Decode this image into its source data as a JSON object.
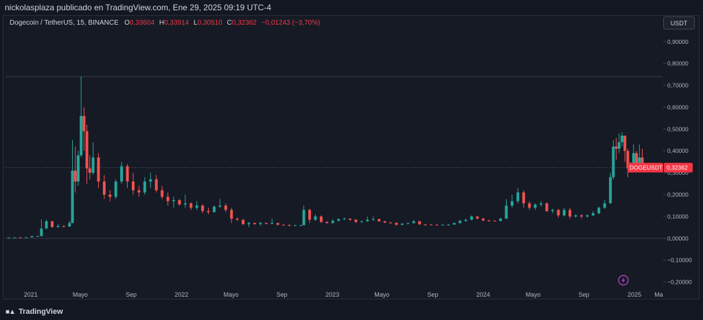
{
  "header": {
    "publisher_text": "nickolasplaza publicado en TradingView.com, Ene 29, 2025 09:19 UTC-4"
  },
  "symbol": {
    "title": "Dogecoin / TetherUS, 15, BINANCE",
    "open_label": "O",
    "open_value": "0,33604",
    "high_label": "H",
    "high_value": "0,33914",
    "low_label": "L",
    "low_value": "0,30510",
    "close_label": "C",
    "close_value": "0,32362",
    "change": "−0,01243 (−3,70%)"
  },
  "currency_button": "USDT",
  "price_tag": {
    "symbol": "DOGEUSDT",
    "price": "0,32362"
  },
  "footer": {
    "brand": "TradingView"
  },
  "colors": {
    "up": "#26a69a",
    "down": "#ef5350",
    "background": "#161a25",
    "grid_text": "#b2b5be",
    "tag": "#f23645"
  },
  "icons": [
    "lightning-icon",
    "tradingview-logo-icon"
  ],
  "chart_data": {
    "type": "candlestick",
    "title": "Dogecoin / TetherUS, 15, BINANCE",
    "ylim": [
      -0.22,
      0.94
    ],
    "y_ticks": [
      {
        "value": 0.9,
        "label": "0,90000"
      },
      {
        "value": 0.8,
        "label": "0,80000"
      },
      {
        "value": 0.7,
        "label": "0,70000"
      },
      {
        "value": 0.6,
        "label": "0,60000"
      },
      {
        "value": 0.5,
        "label": "0,50000"
      },
      {
        "value": 0.4,
        "label": "0,40000"
      },
      {
        "value": 0.3,
        "label": "0,30000"
      },
      {
        "value": 0.2,
        "label": "0,20000"
      },
      {
        "value": 0.1,
        "label": "0,10000"
      },
      {
        "value": 0.0,
        "label": "0,00000"
      },
      {
        "value": -0.1,
        "label": "−0,10000"
      },
      {
        "value": -0.2,
        "label": "−0,20000"
      }
    ],
    "x_ticks": [
      {
        "date": "2021-01-01",
        "label": "2021"
      },
      {
        "date": "2021-05-01",
        "label": "Mayo"
      },
      {
        "date": "2021-09-01",
        "label": "Sep"
      },
      {
        "date": "2022-01-01",
        "label": "2022"
      },
      {
        "date": "2022-05-01",
        "label": "Mayo"
      },
      {
        "date": "2022-09-01",
        "label": "Sep"
      },
      {
        "date": "2023-01-01",
        "label": "2023"
      },
      {
        "date": "2023-05-01",
        "label": "Mayo"
      },
      {
        "date": "2023-09-01",
        "label": "Sep"
      },
      {
        "date": "2024-01-01",
        "label": "2024"
      },
      {
        "date": "2024-05-01",
        "label": "Mayo"
      },
      {
        "date": "2024-09-01",
        "label": "Sep"
      },
      {
        "date": "2025-01-01",
        "label": "2025"
      },
      {
        "date": "2025-03-01",
        "label": "Ma"
      }
    ],
    "horizontal_lines": [
      0.74,
      0.32362,
      0.0
    ],
    "last_price": 0.32362,
    "candles": [
      [
        "2020-11-09",
        0.0028,
        0.0036,
        0.0025,
        0.0034
      ],
      [
        "2020-11-23",
        0.0034,
        0.0045,
        0.003,
        0.0042
      ],
      [
        "2020-12-07",
        0.0042,
        0.0047,
        0.0036,
        0.004
      ],
      [
        "2020-12-21",
        0.004,
        0.0052,
        0.0038,
        0.0046
      ],
      [
        "2021-01-04",
        0.0046,
        0.012,
        0.0042,
        0.0098
      ],
      [
        "2021-01-18",
        0.0098,
        0.012,
        0.008,
        0.0105
      ],
      [
        "2021-01-27",
        0.0105,
        0.087,
        0.009,
        0.045
      ],
      [
        "2021-02-08",
        0.045,
        0.086,
        0.042,
        0.078
      ],
      [
        "2021-02-22",
        0.078,
        0.08,
        0.048,
        0.052
      ],
      [
        "2021-03-08",
        0.052,
        0.064,
        0.048,
        0.056
      ],
      [
        "2021-03-22",
        0.056,
        0.06,
        0.05,
        0.054
      ],
      [
        "2021-04-05",
        0.054,
        0.08,
        0.052,
        0.07
      ],
      [
        "2021-04-12",
        0.07,
        0.45,
        0.07,
        0.31
      ],
      [
        "2021-04-19",
        0.31,
        0.42,
        0.21,
        0.26
      ],
      [
        "2021-04-26",
        0.26,
        0.4,
        0.24,
        0.38
      ],
      [
        "2021-05-03",
        0.38,
        0.74,
        0.37,
        0.56
      ],
      [
        "2021-05-10",
        0.56,
        0.6,
        0.4,
        0.49
      ],
      [
        "2021-05-17",
        0.49,
        0.52,
        0.25,
        0.32
      ],
      [
        "2021-05-24",
        0.32,
        0.38,
        0.27,
        0.3
      ],
      [
        "2021-06-01",
        0.3,
        0.44,
        0.29,
        0.37
      ],
      [
        "2021-06-14",
        0.37,
        0.39,
        0.23,
        0.26
      ],
      [
        "2021-06-28",
        0.26,
        0.29,
        0.18,
        0.2
      ],
      [
        "2021-07-12",
        0.2,
        0.22,
        0.17,
        0.19
      ],
      [
        "2021-07-26",
        0.19,
        0.27,
        0.18,
        0.26
      ],
      [
        "2021-08-09",
        0.26,
        0.35,
        0.25,
        0.33
      ],
      [
        "2021-08-23",
        0.33,
        0.34,
        0.23,
        0.26
      ],
      [
        "2021-09-06",
        0.26,
        0.3,
        0.2,
        0.22
      ],
      [
        "2021-09-20",
        0.22,
        0.24,
        0.19,
        0.21
      ],
      [
        "2021-10-04",
        0.21,
        0.28,
        0.2,
        0.26
      ],
      [
        "2021-10-18",
        0.26,
        0.3,
        0.23,
        0.27
      ],
      [
        "2021-11-01",
        0.27,
        0.29,
        0.21,
        0.22
      ],
      [
        "2021-11-15",
        0.22,
        0.24,
        0.18,
        0.19
      ],
      [
        "2021-11-29",
        0.19,
        0.21,
        0.15,
        0.17
      ],
      [
        "2021-12-13",
        0.17,
        0.19,
        0.14,
        0.175
      ],
      [
        "2021-12-27",
        0.175,
        0.18,
        0.15,
        0.155
      ],
      [
        "2022-01-10",
        0.155,
        0.2,
        0.14,
        0.16
      ],
      [
        "2022-01-24",
        0.16,
        0.165,
        0.13,
        0.14
      ],
      [
        "2022-02-07",
        0.14,
        0.17,
        0.13,
        0.15
      ],
      [
        "2022-02-21",
        0.15,
        0.155,
        0.115,
        0.125
      ],
      [
        "2022-03-07",
        0.125,
        0.14,
        0.11,
        0.12
      ],
      [
        "2022-03-21",
        0.12,
        0.15,
        0.118,
        0.145
      ],
      [
        "2022-04-04",
        0.145,
        0.18,
        0.14,
        0.15
      ],
      [
        "2022-04-18",
        0.15,
        0.16,
        0.12,
        0.13
      ],
      [
        "2022-05-02",
        0.13,
        0.14,
        0.07,
        0.09
      ],
      [
        "2022-05-16",
        0.09,
        0.095,
        0.08,
        0.085
      ],
      [
        "2022-05-30",
        0.085,
        0.088,
        0.06,
        0.065
      ],
      [
        "2022-06-13",
        0.065,
        0.075,
        0.052,
        0.07
      ],
      [
        "2022-06-27",
        0.07,
        0.072,
        0.062,
        0.065
      ],
      [
        "2022-07-11",
        0.065,
        0.075,
        0.058,
        0.07
      ],
      [
        "2022-07-25",
        0.07,
        0.072,
        0.064,
        0.066
      ],
      [
        "2022-08-08",
        0.066,
        0.09,
        0.065,
        0.07
      ],
      [
        "2022-08-22",
        0.07,
        0.072,
        0.059,
        0.062
      ],
      [
        "2022-09-05",
        0.062,
        0.064,
        0.058,
        0.06
      ],
      [
        "2022-09-19",
        0.06,
        0.065,
        0.056,
        0.059
      ],
      [
        "2022-10-03",
        0.059,
        0.062,
        0.057,
        0.06
      ],
      [
        "2022-10-17",
        0.06,
        0.062,
        0.058,
        0.06
      ],
      [
        "2022-10-24",
        0.06,
        0.15,
        0.06,
        0.13
      ],
      [
        "2022-11-07",
        0.13,
        0.135,
        0.07,
        0.085
      ],
      [
        "2022-11-21",
        0.085,
        0.11,
        0.08,
        0.1
      ],
      [
        "2022-12-05",
        0.1,
        0.105,
        0.07,
        0.075
      ],
      [
        "2022-12-19",
        0.075,
        0.078,
        0.068,
        0.07
      ],
      [
        "2023-01-02",
        0.07,
        0.088,
        0.068,
        0.08
      ],
      [
        "2023-01-16",
        0.08,
        0.092,
        0.078,
        0.088
      ],
      [
        "2023-01-30",
        0.088,
        0.095,
        0.084,
        0.09
      ],
      [
        "2023-02-13",
        0.09,
        0.092,
        0.08,
        0.085
      ],
      [
        "2023-02-27",
        0.085,
        0.088,
        0.07,
        0.075
      ],
      [
        "2023-03-13",
        0.075,
        0.08,
        0.07,
        0.078
      ],
      [
        "2023-03-27",
        0.078,
        0.1,
        0.076,
        0.085
      ],
      [
        "2023-04-10",
        0.085,
        0.1,
        0.08,
        0.088
      ],
      [
        "2023-04-24",
        0.088,
        0.09,
        0.076,
        0.078
      ],
      [
        "2023-05-08",
        0.078,
        0.08,
        0.07,
        0.072
      ],
      [
        "2023-05-22",
        0.072,
        0.075,
        0.068,
        0.071
      ],
      [
        "2023-06-05",
        0.071,
        0.073,
        0.058,
        0.062
      ],
      [
        "2023-06-19",
        0.062,
        0.07,
        0.06,
        0.067
      ],
      [
        "2023-07-03",
        0.067,
        0.072,
        0.064,
        0.07
      ],
      [
        "2023-07-17",
        0.07,
        0.085,
        0.068,
        0.078
      ],
      [
        "2023-07-31",
        0.078,
        0.08,
        0.062,
        0.064
      ],
      [
        "2023-08-14",
        0.064,
        0.066,
        0.058,
        0.063
      ],
      [
        "2023-08-28",
        0.063,
        0.065,
        0.06,
        0.062
      ],
      [
        "2023-09-11",
        0.062,
        0.064,
        0.06,
        0.0615
      ],
      [
        "2023-09-25",
        0.0615,
        0.064,
        0.06,
        0.062
      ],
      [
        "2023-10-09",
        0.062,
        0.065,
        0.058,
        0.063
      ],
      [
        "2023-10-23",
        0.063,
        0.072,
        0.062,
        0.07
      ],
      [
        "2023-11-06",
        0.07,
        0.085,
        0.068,
        0.08
      ],
      [
        "2023-11-20",
        0.08,
        0.09,
        0.075,
        0.085
      ],
      [
        "2023-12-04",
        0.085,
        0.105,
        0.083,
        0.1
      ],
      [
        "2023-12-18",
        0.1,
        0.102,
        0.088,
        0.09
      ],
      [
        "2024-01-01",
        0.09,
        0.095,
        0.078,
        0.082
      ],
      [
        "2024-01-15",
        0.082,
        0.085,
        0.076,
        0.08
      ],
      [
        "2024-01-29",
        0.08,
        0.083,
        0.077,
        0.079
      ],
      [
        "2024-02-12",
        0.079,
        0.095,
        0.078,
        0.09
      ],
      [
        "2024-02-26",
        0.09,
        0.18,
        0.088,
        0.15
      ],
      [
        "2024-03-11",
        0.15,
        0.2,
        0.14,
        0.17
      ],
      [
        "2024-03-25",
        0.17,
        0.23,
        0.16,
        0.21
      ],
      [
        "2024-04-08",
        0.21,
        0.22,
        0.14,
        0.16
      ],
      [
        "2024-04-22",
        0.16,
        0.17,
        0.13,
        0.14
      ],
      [
        "2024-05-06",
        0.14,
        0.16,
        0.13,
        0.155
      ],
      [
        "2024-05-20",
        0.155,
        0.17,
        0.145,
        0.16
      ],
      [
        "2024-06-03",
        0.16,
        0.165,
        0.12,
        0.125
      ],
      [
        "2024-06-17",
        0.125,
        0.135,
        0.115,
        0.13
      ],
      [
        "2024-07-01",
        0.13,
        0.135,
        0.095,
        0.105
      ],
      [
        "2024-07-15",
        0.105,
        0.14,
        0.1,
        0.13
      ],
      [
        "2024-07-29",
        0.13,
        0.14,
        0.09,
        0.1
      ],
      [
        "2024-08-12",
        0.1,
        0.11,
        0.095,
        0.105
      ],
      [
        "2024-08-26",
        0.105,
        0.11,
        0.092,
        0.1
      ],
      [
        "2024-09-09",
        0.1,
        0.11,
        0.095,
        0.105
      ],
      [
        "2024-09-23",
        0.105,
        0.125,
        0.102,
        0.115
      ],
      [
        "2024-10-07",
        0.115,
        0.145,
        0.11,
        0.14
      ],
      [
        "2024-10-21",
        0.14,
        0.175,
        0.135,
        0.16
      ],
      [
        "2024-11-04",
        0.16,
        0.3,
        0.16,
        0.28
      ],
      [
        "2024-11-11",
        0.28,
        0.45,
        0.27,
        0.42
      ],
      [
        "2024-11-18",
        0.42,
        0.46,
        0.36,
        0.41
      ],
      [
        "2024-11-25",
        0.41,
        0.48,
        0.39,
        0.44
      ],
      [
        "2024-12-02",
        0.44,
        0.485,
        0.42,
        0.47
      ],
      [
        "2024-12-09",
        0.47,
        0.47,
        0.35,
        0.4
      ],
      [
        "2024-12-16",
        0.4,
        0.41,
        0.28,
        0.32
      ],
      [
        "2024-12-23",
        0.32,
        0.35,
        0.3,
        0.315
      ],
      [
        "2024-12-30",
        0.315,
        0.43,
        0.31,
        0.39
      ],
      [
        "2025-01-06",
        0.39,
        0.4,
        0.32,
        0.34
      ],
      [
        "2025-01-13",
        0.34,
        0.43,
        0.33,
        0.37
      ],
      [
        "2025-01-20",
        0.37,
        0.41,
        0.31,
        0.336
      ],
      [
        "2025-01-27",
        0.336,
        0.3391,
        0.3051,
        0.3236
      ]
    ]
  }
}
